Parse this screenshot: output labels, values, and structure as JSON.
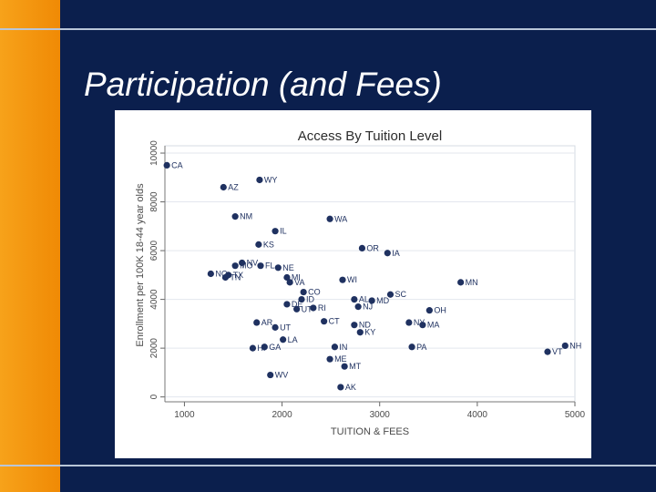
{
  "slide": {
    "title": "Participation (and Fees)",
    "colors": {
      "background": "#0b1f4d",
      "accent_bar": "#f39a10",
      "rule": "#b9c6d8",
      "marker": "#1f3160"
    }
  },
  "chart_data": {
    "type": "scatter",
    "title": "Access By Tuition Level",
    "xlabel": "TUITION & FEES",
    "ylabel": "Enrollment per 100K 18-44 year olds",
    "xlim": [
      800,
      5000
    ],
    "ylim": [
      -200,
      10300
    ],
    "xticks": [
      "1000",
      "2000",
      "3000",
      "4000",
      "5000"
    ],
    "yticks": [
      "0",
      "2000",
      "4000",
      "6000",
      "8000",
      "10000"
    ],
    "grid": "horizontal",
    "points": [
      {
        "label": "CA",
        "x": 820,
        "y": 9500
      },
      {
        "label": "WY",
        "x": 1770,
        "y": 8900
      },
      {
        "label": "AZ",
        "x": 1400,
        "y": 8600
      },
      {
        "label": "NM",
        "x": 1520,
        "y": 7400
      },
      {
        "label": "WA",
        "x": 2490,
        "y": 7300
      },
      {
        "label": "IL",
        "x": 1930,
        "y": 6800
      },
      {
        "label": "KS",
        "x": 1760,
        "y": 6250
      },
      {
        "label": "OR",
        "x": 2820,
        "y": 6100
      },
      {
        "label": "IA",
        "x": 3080,
        "y": 5900
      },
      {
        "label": "NV",
        "x": 1590,
        "y": 5500
      },
      {
        "label": "MO",
        "x": 1520,
        "y": 5380
      },
      {
        "label": "FL",
        "x": 1780,
        "y": 5380
      },
      {
        "label": "NE",
        "x": 1960,
        "y": 5300
      },
      {
        "label": "NC",
        "x": 1270,
        "y": 5050
      },
      {
        "label": "TX",
        "x": 1450,
        "y": 5000
      },
      {
        "label": "TN",
        "x": 1420,
        "y": 4900
      },
      {
        "label": "MI",
        "x": 2050,
        "y": 4900
      },
      {
        "label": "VA",
        "x": 2080,
        "y": 4700
      },
      {
        "label": "WI",
        "x": 2620,
        "y": 4800
      },
      {
        "label": "MN",
        "x": 3830,
        "y": 4700
      },
      {
        "label": "CO",
        "x": 2220,
        "y": 4300
      },
      {
        "label": "SC",
        "x": 3110,
        "y": 4200
      },
      {
        "label": "ID",
        "x": 2200,
        "y": 4000
      },
      {
        "label": "AL",
        "x": 2740,
        "y": 4000
      },
      {
        "label": "MD",
        "x": 2920,
        "y": 3950
      },
      {
        "label": "DE",
        "x": 2050,
        "y": 3800
      },
      {
        "label": "NJ",
        "x": 2780,
        "y": 3700
      },
      {
        "label": "UT",
        "x": 2150,
        "y": 3600
      },
      {
        "label": "RI",
        "x": 2320,
        "y": 3650
      },
      {
        "label": "OH",
        "x": 3510,
        "y": 3550
      },
      {
        "label": "CT",
        "x": 2430,
        "y": 3100
      },
      {
        "label": "NY",
        "x": 3300,
        "y": 3050
      },
      {
        "label": "MA",
        "x": 3440,
        "y": 2950
      },
      {
        "label": "AR",
        "x": 1740,
        "y": 3050
      },
      {
        "label": "UT",
        "x": 1930,
        "y": 2850
      },
      {
        "label": "ND",
        "x": 2740,
        "y": 2950
      },
      {
        "label": "KY",
        "x": 2800,
        "y": 2650
      },
      {
        "label": "LA",
        "x": 2010,
        "y": 2350
      },
      {
        "label": "IN",
        "x": 2540,
        "y": 2050
      },
      {
        "label": "PA",
        "x": 3330,
        "y": 2050
      },
      {
        "label": "HI",
        "x": 1700,
        "y": 2000
      },
      {
        "label": "GA",
        "x": 1820,
        "y": 2050
      },
      {
        "label": "NH",
        "x": 4900,
        "y": 2100
      },
      {
        "label": "VT",
        "x": 4720,
        "y": 1850
      },
      {
        "label": "ME",
        "x": 2490,
        "y": 1550
      },
      {
        "label": "MT",
        "x": 2640,
        "y": 1250
      },
      {
        "label": "WV",
        "x": 1880,
        "y": 900
      },
      {
        "label": "AK",
        "x": 2600,
        "y": 400
      }
    ]
  }
}
